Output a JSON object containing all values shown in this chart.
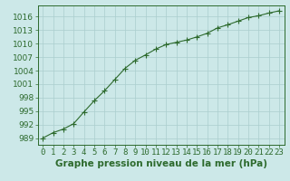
{
  "x": [
    0,
    1,
    2,
    3,
    4,
    5,
    6,
    7,
    8,
    9,
    10,
    11,
    12,
    13,
    14,
    15,
    16,
    17,
    18,
    19,
    20,
    21,
    22,
    23
  ],
  "y": [
    989.0,
    990.2,
    991.0,
    992.2,
    994.8,
    997.3,
    999.5,
    1002.0,
    1004.5,
    1006.3,
    1007.5,
    1008.8,
    1009.8,
    1010.3,
    1010.8,
    1011.5,
    1012.3,
    1013.5,
    1014.2,
    1015.0,
    1015.8,
    1016.2,
    1016.8,
    1017.3
  ],
  "line_color": "#2d6a2d",
  "marker": "+",
  "bg_color": "#cce8e8",
  "grid_color": "#aacece",
  "xlabel": "Graphe pression niveau de la mer (hPa)",
  "yticks": [
    989,
    992,
    995,
    998,
    1001,
    1004,
    1007,
    1010,
    1013,
    1016
  ],
  "xticks": [
    0,
    1,
    2,
    3,
    4,
    5,
    6,
    7,
    8,
    9,
    10,
    11,
    12,
    13,
    14,
    15,
    16,
    17,
    18,
    19,
    20,
    21,
    22,
    23
  ],
  "ylim": [
    987.5,
    1018.5
  ],
  "xlim": [
    -0.5,
    23.5
  ],
  "axis_color": "#2d6a2d",
  "xlabel_fontsize": 7.5,
  "tick_fontsize": 6.5
}
